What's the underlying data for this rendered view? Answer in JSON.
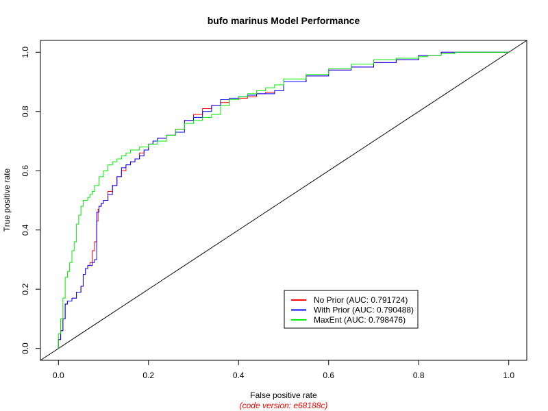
{
  "chart_data": {
    "type": "line",
    "title": "bufo marinus Model Performance",
    "xlabel": "False positive rate",
    "ylabel": "True positive rate",
    "footnote": "(code version: e68188c)",
    "footnote_color": "#ff0000",
    "xlim": [
      -0.04,
      1.04
    ],
    "ylim": [
      -0.04,
      1.04
    ],
    "x_ticks": [
      0.0,
      0.2,
      0.4,
      0.6,
      0.8,
      1.0
    ],
    "y_ticks": [
      0.0,
      0.2,
      0.4,
      0.6,
      0.8,
      1.0
    ],
    "x_tick_labels": [
      "0.0",
      "0.2",
      "0.4",
      "0.6",
      "0.8",
      "1.0"
    ],
    "y_tick_labels": [
      "0.0",
      "0.2",
      "0.4",
      "0.6",
      "0.8",
      "1.0"
    ],
    "grid": false,
    "legend_position": "bottom-right",
    "diagonal": {
      "x": [
        0,
        1
      ],
      "y": [
        0,
        1
      ],
      "color": "#000000"
    },
    "series": [
      {
        "name": "No Prior (AUC: 0.791724)",
        "color": "#ff0000",
        "x": [
          0.0,
          0.005,
          0.01,
          0.015,
          0.02,
          0.025,
          0.03,
          0.04,
          0.05,
          0.055,
          0.06,
          0.065,
          0.07,
          0.075,
          0.08,
          0.085,
          0.088,
          0.09,
          0.095,
          0.1,
          0.11,
          0.12,
          0.13,
          0.14,
          0.15,
          0.16,
          0.17,
          0.18,
          0.19,
          0.2,
          0.21,
          0.22,
          0.24,
          0.26,
          0.28,
          0.3,
          0.32,
          0.34,
          0.36,
          0.38,
          0.4,
          0.42,
          0.44,
          0.46,
          0.48,
          0.5,
          0.55,
          0.6,
          0.65,
          0.7,
          0.75,
          0.8,
          0.85,
          0.9,
          0.92,
          1.0
        ],
        "y": [
          0.0,
          0.03,
          0.06,
          0.1,
          0.15,
          0.16,
          0.16,
          0.17,
          0.19,
          0.21,
          0.25,
          0.27,
          0.28,
          0.29,
          0.33,
          0.36,
          0.43,
          0.47,
          0.48,
          0.49,
          0.5,
          0.53,
          0.55,
          0.58,
          0.6,
          0.62,
          0.63,
          0.64,
          0.66,
          0.67,
          0.69,
          0.7,
          0.71,
          0.72,
          0.74,
          0.77,
          0.79,
          0.81,
          0.82,
          0.83,
          0.84,
          0.845,
          0.85,
          0.86,
          0.865,
          0.87,
          0.9,
          0.92,
          0.94,
          0.95,
          0.965,
          0.975,
          0.99,
          1.0,
          1.0,
          1.0
        ]
      },
      {
        "name": "With Prior (AUC: 0.790488)",
        "color": "#0000ff",
        "x": [
          0.0,
          0.005,
          0.01,
          0.015,
          0.02,
          0.025,
          0.03,
          0.04,
          0.05,
          0.055,
          0.06,
          0.065,
          0.07,
          0.075,
          0.08,
          0.085,
          0.09,
          0.095,
          0.1,
          0.11,
          0.12,
          0.13,
          0.14,
          0.15,
          0.16,
          0.17,
          0.18,
          0.19,
          0.2,
          0.21,
          0.22,
          0.24,
          0.26,
          0.28,
          0.3,
          0.32,
          0.34,
          0.36,
          0.38,
          0.4,
          0.42,
          0.44,
          0.46,
          0.48,
          0.5,
          0.55,
          0.6,
          0.65,
          0.7,
          0.75,
          0.8,
          0.85,
          0.9,
          0.92,
          1.0
        ],
        "y": [
          0.0,
          0.03,
          0.06,
          0.1,
          0.15,
          0.16,
          0.16,
          0.17,
          0.19,
          0.21,
          0.25,
          0.27,
          0.28,
          0.28,
          0.29,
          0.3,
          0.46,
          0.48,
          0.49,
          0.5,
          0.52,
          0.55,
          0.58,
          0.61,
          0.62,
          0.63,
          0.64,
          0.65,
          0.67,
          0.69,
          0.7,
          0.71,
          0.72,
          0.73,
          0.77,
          0.78,
          0.8,
          0.82,
          0.84,
          0.845,
          0.85,
          0.855,
          0.86,
          0.86,
          0.87,
          0.9,
          0.92,
          0.94,
          0.95,
          0.965,
          0.975,
          0.99,
          1.0,
          1.0,
          1.0
        ]
      },
      {
        "name": "MaxEnt (AUC: 0.798476)",
        "color": "#00ee00",
        "x": [
          0.0,
          0.005,
          0.01,
          0.015,
          0.02,
          0.025,
          0.03,
          0.035,
          0.04,
          0.045,
          0.05,
          0.055,
          0.06,
          0.065,
          0.07,
          0.075,
          0.08,
          0.09,
          0.1,
          0.11,
          0.12,
          0.13,
          0.14,
          0.15,
          0.16,
          0.18,
          0.2,
          0.22,
          0.24,
          0.26,
          0.28,
          0.3,
          0.32,
          0.34,
          0.36,
          0.38,
          0.4,
          0.42,
          0.44,
          0.46,
          0.48,
          0.5,
          0.55,
          0.6,
          0.65,
          0.7,
          0.75,
          0.8,
          0.82,
          0.85,
          0.88,
          0.9,
          1.0
        ],
        "y": [
          0.0,
          0.05,
          0.1,
          0.17,
          0.24,
          0.26,
          0.29,
          0.33,
          0.36,
          0.42,
          0.45,
          0.48,
          0.5,
          0.5,
          0.51,
          0.52,
          0.53,
          0.55,
          0.58,
          0.6,
          0.62,
          0.63,
          0.64,
          0.65,
          0.66,
          0.67,
          0.68,
          0.69,
          0.7,
          0.72,
          0.74,
          0.76,
          0.77,
          0.78,
          0.79,
          0.82,
          0.84,
          0.85,
          0.86,
          0.87,
          0.88,
          0.89,
          0.91,
          0.925,
          0.945,
          0.96,
          0.975,
          0.98,
          0.985,
          0.99,
          0.995,
          1.0,
          1.0
        ]
      }
    ]
  }
}
